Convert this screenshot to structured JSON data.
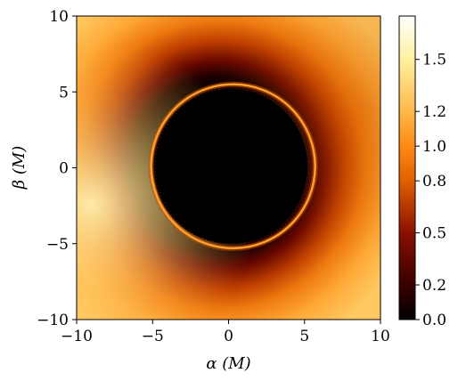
{
  "chart_data": {
    "type": "heatmap",
    "title": "",
    "xlabel": "α (M)",
    "ylabel": "β (M)",
    "xlim": [
      -10,
      10
    ],
    "ylim": [
      -10,
      10
    ],
    "x_ticks": [
      -10,
      -5,
      0,
      5,
      10
    ],
    "y_ticks": [
      -10,
      -5,
      0,
      5,
      10
    ],
    "x_tick_labels": [
      "−10",
      "−5",
      "0",
      "5",
      "10"
    ],
    "y_tick_labels": [
      "−10",
      "−5",
      "0",
      "5",
      "10"
    ],
    "colormap": "afmhot",
    "colorbar": {
      "vmin": 0.0,
      "vmax": 1.75,
      "ticks": [
        0.0,
        0.2,
        0.5,
        0.8,
        1.0,
        1.2,
        1.5
      ],
      "tick_labels": [
        "0.0",
        "0.2",
        "0.5",
        "0.8",
        "1.0",
        "1.2",
        "1.5"
      ],
      "stops": [
        {
          "value": 0.0,
          "color": "#000000"
        },
        {
          "value": 0.2,
          "color": "#3a0000"
        },
        {
          "value": 0.5,
          "color": "#8a1000"
        },
        {
          "value": 0.8,
          "color": "#e06000"
        },
        {
          "value": 1.0,
          "color": "#ff8a14"
        },
        {
          "value": 1.2,
          "color": "#ffb84a"
        },
        {
          "value": 1.5,
          "color": "#fff0a0"
        },
        {
          "value": 1.75,
          "color": "#ffffff"
        }
      ]
    },
    "shadow": {
      "center": [
        0.1,
        0.1
      ],
      "radius": 5.1,
      "value": 0.0
    },
    "photon_ring": {
      "center": [
        0.3,
        0.1
      ],
      "radius": 5.4,
      "peak_value": 1.0
    },
    "background": {
      "max_value": 1.5,
      "bright_side": "left",
      "dark_halo_radius": 6.5
    }
  }
}
